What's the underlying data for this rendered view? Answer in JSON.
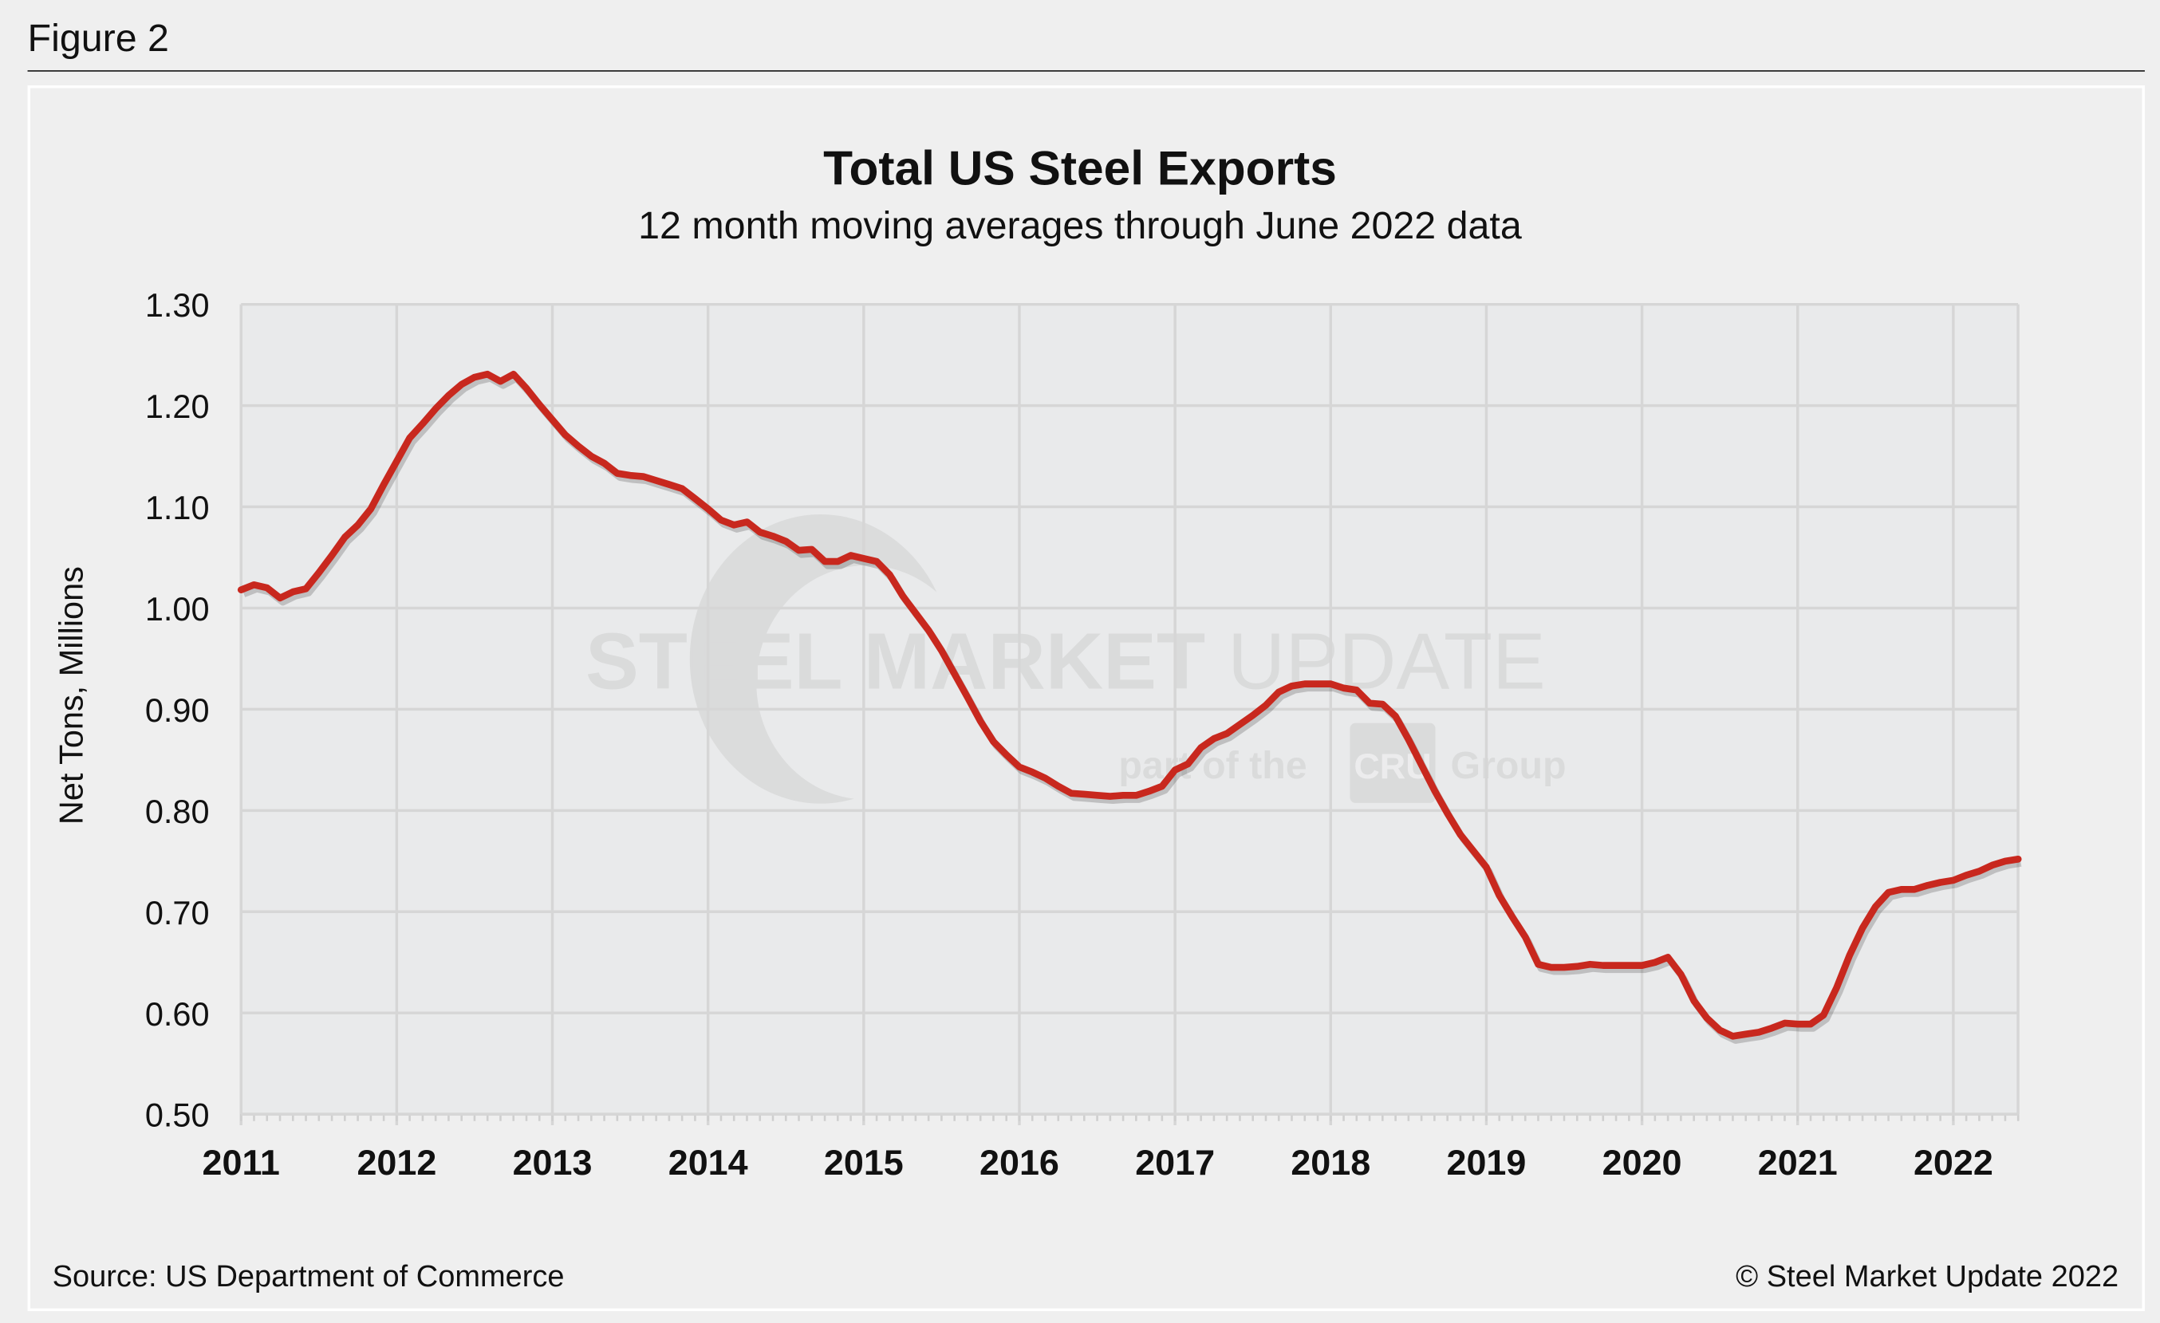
{
  "figure_label": "Figure 2",
  "footer": {
    "source": "Source: US Department of Commerce",
    "copyright": "© Steel Market Update 2022"
  },
  "watermark": {
    "line1_bold": "STEEL MARKET",
    "line1_light": "UPDATE",
    "line2": "part of the",
    "badge": "CRU",
    "line2_end": "Group"
  },
  "chart_data": {
    "type": "line",
    "title": "Total US Steel Exports",
    "subtitle": "12 month moving averages through June 2022 data",
    "xlabel": "",
    "ylabel": "Net Tons, Millions",
    "ylim": [
      0.5,
      1.3
    ],
    "yticks": [
      "0.50",
      "0.60",
      "0.70",
      "0.80",
      "0.90",
      "1.00",
      "1.10",
      "1.20",
      "1.30"
    ],
    "xticks": [
      "2011",
      "2012",
      "2013",
      "2014",
      "2015",
      "2016",
      "2017",
      "2018",
      "2019",
      "2020",
      "2021",
      "2022"
    ],
    "xlim": [
      "2011-01",
      "2022-06"
    ],
    "grid": true,
    "line_color": "#c8281e",
    "series": [
      {
        "x": [
          "2011-01",
          "2011-02",
          "2011-03",
          "2011-04",
          "2011-05",
          "2011-06",
          "2011-07",
          "2011-08",
          "2011-09",
          "2011-10",
          "2011-11",
          "2011-12",
          "2012-01",
          "2012-02",
          "2012-03",
          "2012-04",
          "2012-05",
          "2012-06",
          "2012-07",
          "2012-08",
          "2012-09",
          "2012-10",
          "2012-11",
          "2012-12",
          "2013-01",
          "2013-02",
          "2013-03",
          "2013-04",
          "2013-05",
          "2013-06",
          "2013-07",
          "2013-08",
          "2013-09",
          "2013-10",
          "2013-11",
          "2013-12",
          "2014-01",
          "2014-02",
          "2014-03",
          "2014-04",
          "2014-05",
          "2014-06",
          "2014-07",
          "2014-08",
          "2014-09",
          "2014-10",
          "2014-11",
          "2014-12",
          "2015-01",
          "2015-02",
          "2015-03",
          "2015-04",
          "2015-05",
          "2015-06",
          "2015-07",
          "2015-08",
          "2015-09",
          "2015-10",
          "2015-11",
          "2015-12",
          "2016-01",
          "2016-02",
          "2016-03",
          "2016-04",
          "2016-05",
          "2016-06",
          "2016-07",
          "2016-08",
          "2016-09",
          "2016-10",
          "2016-11",
          "2016-12",
          "2017-01",
          "2017-02",
          "2017-03",
          "2017-04",
          "2017-05",
          "2017-06",
          "2017-07",
          "2017-08",
          "2017-09",
          "2017-10",
          "2017-11",
          "2017-12",
          "2018-01",
          "2018-02",
          "2018-03",
          "2018-04",
          "2018-05",
          "2018-06",
          "2018-07",
          "2018-08",
          "2018-09",
          "2018-10",
          "2018-11",
          "2018-12",
          "2019-01",
          "2019-02",
          "2019-03",
          "2019-04",
          "2019-05",
          "2019-06",
          "2019-07",
          "2019-08",
          "2019-09",
          "2019-10",
          "2019-11",
          "2019-12",
          "2020-01",
          "2020-02",
          "2020-03",
          "2020-04",
          "2020-05",
          "2020-06",
          "2020-07",
          "2020-08",
          "2020-09",
          "2020-10",
          "2020-11",
          "2020-12",
          "2021-01",
          "2021-02",
          "2021-03",
          "2021-04",
          "2021-05",
          "2021-06",
          "2021-07",
          "2021-08",
          "2021-09",
          "2021-10",
          "2021-11",
          "2021-12",
          "2022-01",
          "2022-02",
          "2022-03",
          "2022-04",
          "2022-05",
          "2022-06"
        ],
        "y": [
          1.018,
          1.023,
          1.02,
          1.01,
          1.016,
          1.019,
          1.035,
          1.052,
          1.07,
          1.082,
          1.098,
          1.122,
          1.145,
          1.168,
          1.182,
          1.197,
          1.21,
          1.221,
          1.228,
          1.231,
          1.224,
          1.231,
          1.217,
          1.201,
          1.186,
          1.171,
          1.16,
          1.15,
          1.143,
          1.133,
          1.131,
          1.13,
          1.126,
          1.122,
          1.118,
          1.108,
          1.098,
          1.087,
          1.082,
          1.085,
          1.075,
          1.071,
          1.066,
          1.057,
          1.058,
          1.046,
          1.046,
          1.052,
          1.049,
          1.046,
          1.033,
          1.012,
          0.995,
          0.978,
          0.958,
          0.935,
          0.912,
          0.888,
          0.868,
          0.855,
          0.843,
          0.838,
          0.832,
          0.824,
          0.817,
          0.816,
          0.815,
          0.814,
          0.815,
          0.815,
          0.819,
          0.824,
          0.84,
          0.846,
          0.862,
          0.871,
          0.876,
          0.885,
          0.894,
          0.904,
          0.917,
          0.923,
          0.925,
          0.925,
          0.925,
          0.921,
          0.919,
          0.906,
          0.905,
          0.893,
          0.87,
          0.845,
          0.82,
          0.797,
          0.776,
          0.76,
          0.744,
          0.716,
          0.695,
          0.675,
          0.648,
          0.645,
          0.645,
          0.646,
          0.648,
          0.647,
          0.647,
          0.647,
          0.647,
          0.65,
          0.655,
          0.638,
          0.612,
          0.595,
          0.583,
          0.577,
          0.579,
          0.581,
          0.585,
          0.59,
          0.589,
          0.589,
          0.598,
          0.625,
          0.657,
          0.684,
          0.705,
          0.719,
          0.722,
          0.722,
          0.726,
          0.729,
          0.731,
          0.736,
          0.74,
          0.746,
          0.75,
          0.752
        ]
      }
    ]
  }
}
